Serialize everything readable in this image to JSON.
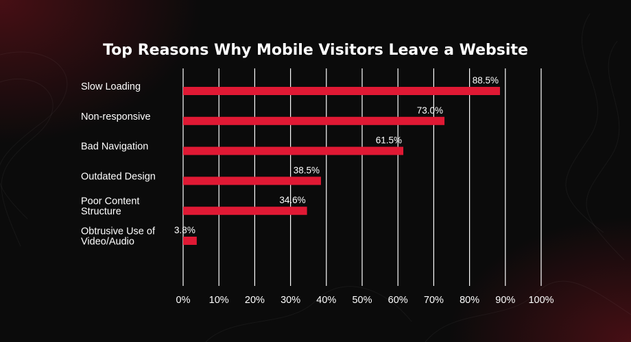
{
  "chart_data": {
    "type": "bar",
    "orientation": "horizontal",
    "title": "Top Reasons Why Mobile Visitors Leave a Website",
    "categories": [
      [
        "Slow Loading"
      ],
      [
        "Non-responsive"
      ],
      [
        "Bad Navigation"
      ],
      [
        "Outdated Design"
      ],
      [
        "Poor Content",
        "Structure"
      ],
      [
        "Obtrusive Use of",
        "Video/Audio"
      ]
    ],
    "values": [
      88.5,
      73.0,
      61.5,
      38.5,
      34.6,
      3.8
    ],
    "value_labels": [
      "88.5%",
      "73.0%",
      "61.5%",
      "38.5%",
      "34.6%",
      "3.8%"
    ],
    "xlim": [
      0,
      100
    ],
    "x_ticks": [
      0,
      10,
      20,
      30,
      40,
      50,
      60,
      70,
      80,
      90,
      100
    ],
    "x_tick_labels": [
      "0%",
      "10%",
      "20%",
      "30%",
      "40%",
      "50%",
      "60%",
      "70%",
      "80%",
      "90%",
      "100%"
    ],
    "grid": true,
    "bar_color": "#e01934",
    "background_color": "#0b0b0b",
    "text_color": "#ffffff"
  }
}
